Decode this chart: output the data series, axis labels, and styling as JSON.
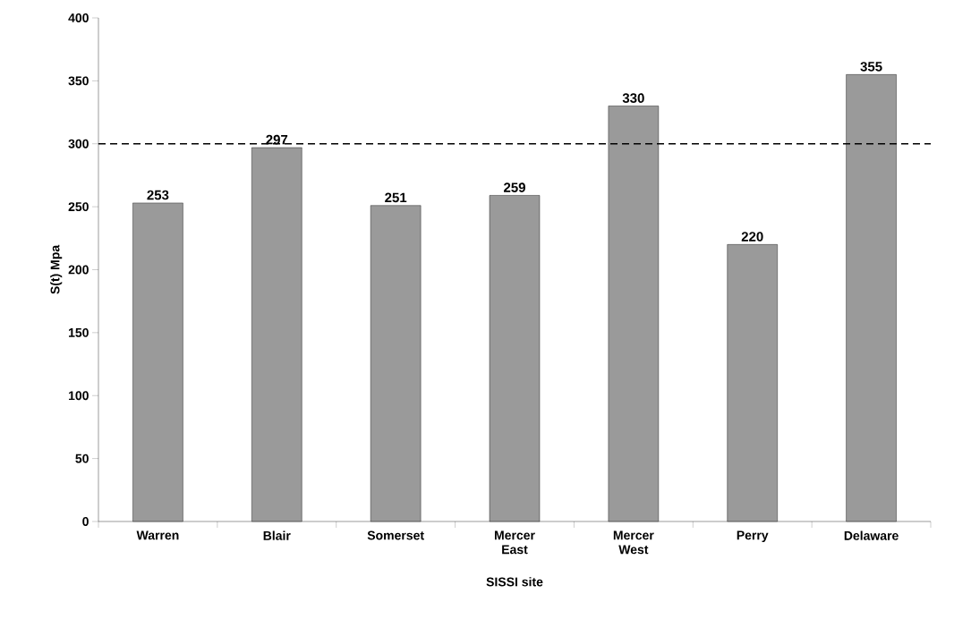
{
  "chart_data": {
    "type": "bar",
    "xlabel": "SISSI site",
    "ylabel": "S(t) Mpa",
    "categories": [
      "Warren",
      "Blair",
      "Somerset",
      "Mercer East",
      "Mercer West",
      "Perry",
      "Delaware"
    ],
    "values": [
      253,
      297,
      251,
      259,
      330,
      220,
      355
    ],
    "color": "#9a9a9a",
    "ylim": [
      0,
      400
    ],
    "yticks": [
      0,
      50,
      100,
      150,
      200,
      250,
      300,
      350,
      400
    ],
    "data_labels": true,
    "grid": false,
    "ref_lines": [
      {
        "axis": "y",
        "value": 300,
        "color": "#000000",
        "line_style": "dashed"
      }
    ]
  }
}
